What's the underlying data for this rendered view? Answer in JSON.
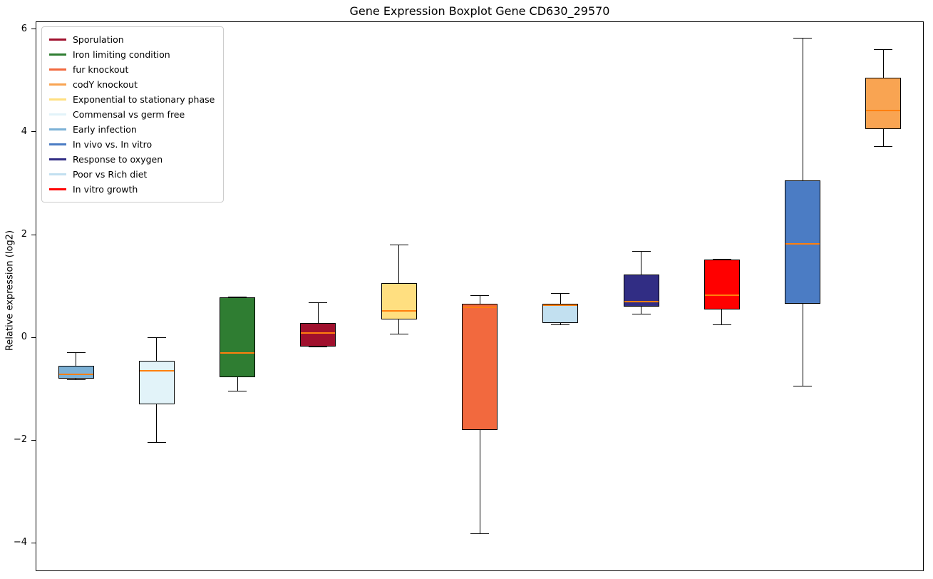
{
  "title": "Gene Expression Boxplot Gene CD630_29570",
  "chart_data": {
    "type": "boxplot",
    "title": "Gene Expression Boxplot Gene CD630_29570",
    "xlabel": "",
    "ylabel": "Relative expression (log2)",
    "ylim": [
      -4.55,
      6.15
    ],
    "grid": false,
    "legend_position": "upper left",
    "median_color": "#ff7f0e",
    "yticks": [
      {
        "value": 6,
        "label": "6"
      },
      {
        "value": 4,
        "label": "4"
      },
      {
        "value": 2,
        "label": "2"
      },
      {
        "value": 0,
        "label": "0"
      },
      {
        "value": -2,
        "label": "−2"
      },
      {
        "value": -4,
        "label": "−4"
      }
    ],
    "legend": [
      {
        "label": "Sporulation",
        "color": "#a0102d"
      },
      {
        "label": "Iron limiting condition",
        "color": "#2f7d32"
      },
      {
        "label": "fur knockout",
        "color": "#f2693e"
      },
      {
        "label": "codY knockout",
        "color": "#f9a452"
      },
      {
        "label": "Exponential to stationary phase",
        "color": "#ffdf80"
      },
      {
        "label": "Commensal vs germ free",
        "color": "#e2f3f9"
      },
      {
        "label": "Early infection",
        "color": "#7cb1d6"
      },
      {
        "label": "In vivo vs. In vitro",
        "color": "#4b7cc4"
      },
      {
        "label": "Response to oxygen",
        "color": "#312d84"
      },
      {
        "label": "Poor vs Rich diet",
        "color": "#c2e0f0"
      },
      {
        "label": "In vitro growth",
        "color": "#ff0000"
      }
    ],
    "boxes": [
      {
        "label": "Early infection",
        "color": "#7cb1d6",
        "whislo": -0.82,
        "q1": -0.8,
        "med": -0.72,
        "q3": -0.55,
        "whishi": -0.3
      },
      {
        "label": "Commensal vs germ free",
        "color": "#e2f3f9",
        "whislo": -2.05,
        "q1": -1.3,
        "med": -0.65,
        "q3": -0.45,
        "whishi": 0.0
      },
      {
        "label": "Iron limiting condition",
        "color": "#2f7d32",
        "whislo": -1.05,
        "q1": -0.78,
        "med": -0.3,
        "q3": 0.78,
        "whishi": 0.78
      },
      {
        "label": "Sporulation",
        "color": "#a0102d",
        "whislo": -0.18,
        "q1": -0.18,
        "med": 0.08,
        "q3": 0.28,
        "whishi": 0.68
      },
      {
        "label": "Exponential to stationary phase",
        "color": "#ffdf80",
        "whislo": 0.07,
        "q1": 0.35,
        "med": 0.52,
        "q3": 1.05,
        "whishi": 1.8
      },
      {
        "label": "fur knockout",
        "color": "#f2693e",
        "whislo": -3.82,
        "q1": -1.8,
        "med": 0.58,
        "q3": 0.65,
        "whishi": 0.82
      },
      {
        "label": "Poor vs Rich diet",
        "color": "#c2e0f0",
        "whislo": 0.25,
        "q1": 0.28,
        "med": 0.62,
        "q3": 0.65,
        "whishi": 0.85
      },
      {
        "label": "Response to oxygen",
        "color": "#312d84",
        "whislo": 0.45,
        "q1": 0.6,
        "med": 0.7,
        "q3": 1.22,
        "whishi": 1.68
      },
      {
        "label": "In vitro growth",
        "color": "#ff0000",
        "whislo": 0.25,
        "q1": 0.55,
        "med": 0.82,
        "q3": 1.52,
        "whishi": 1.52
      },
      {
        "label": "In vivo vs. In vitro",
        "color": "#4b7cc4",
        "whislo": -0.95,
        "q1": 0.65,
        "med": 1.82,
        "q3": 3.05,
        "whishi": 5.82
      },
      {
        "label": "codY knockout",
        "color": "#f9a452",
        "whislo": 3.72,
        "q1": 4.05,
        "med": 4.42,
        "q3": 5.05,
        "whishi": 5.6
      }
    ]
  }
}
